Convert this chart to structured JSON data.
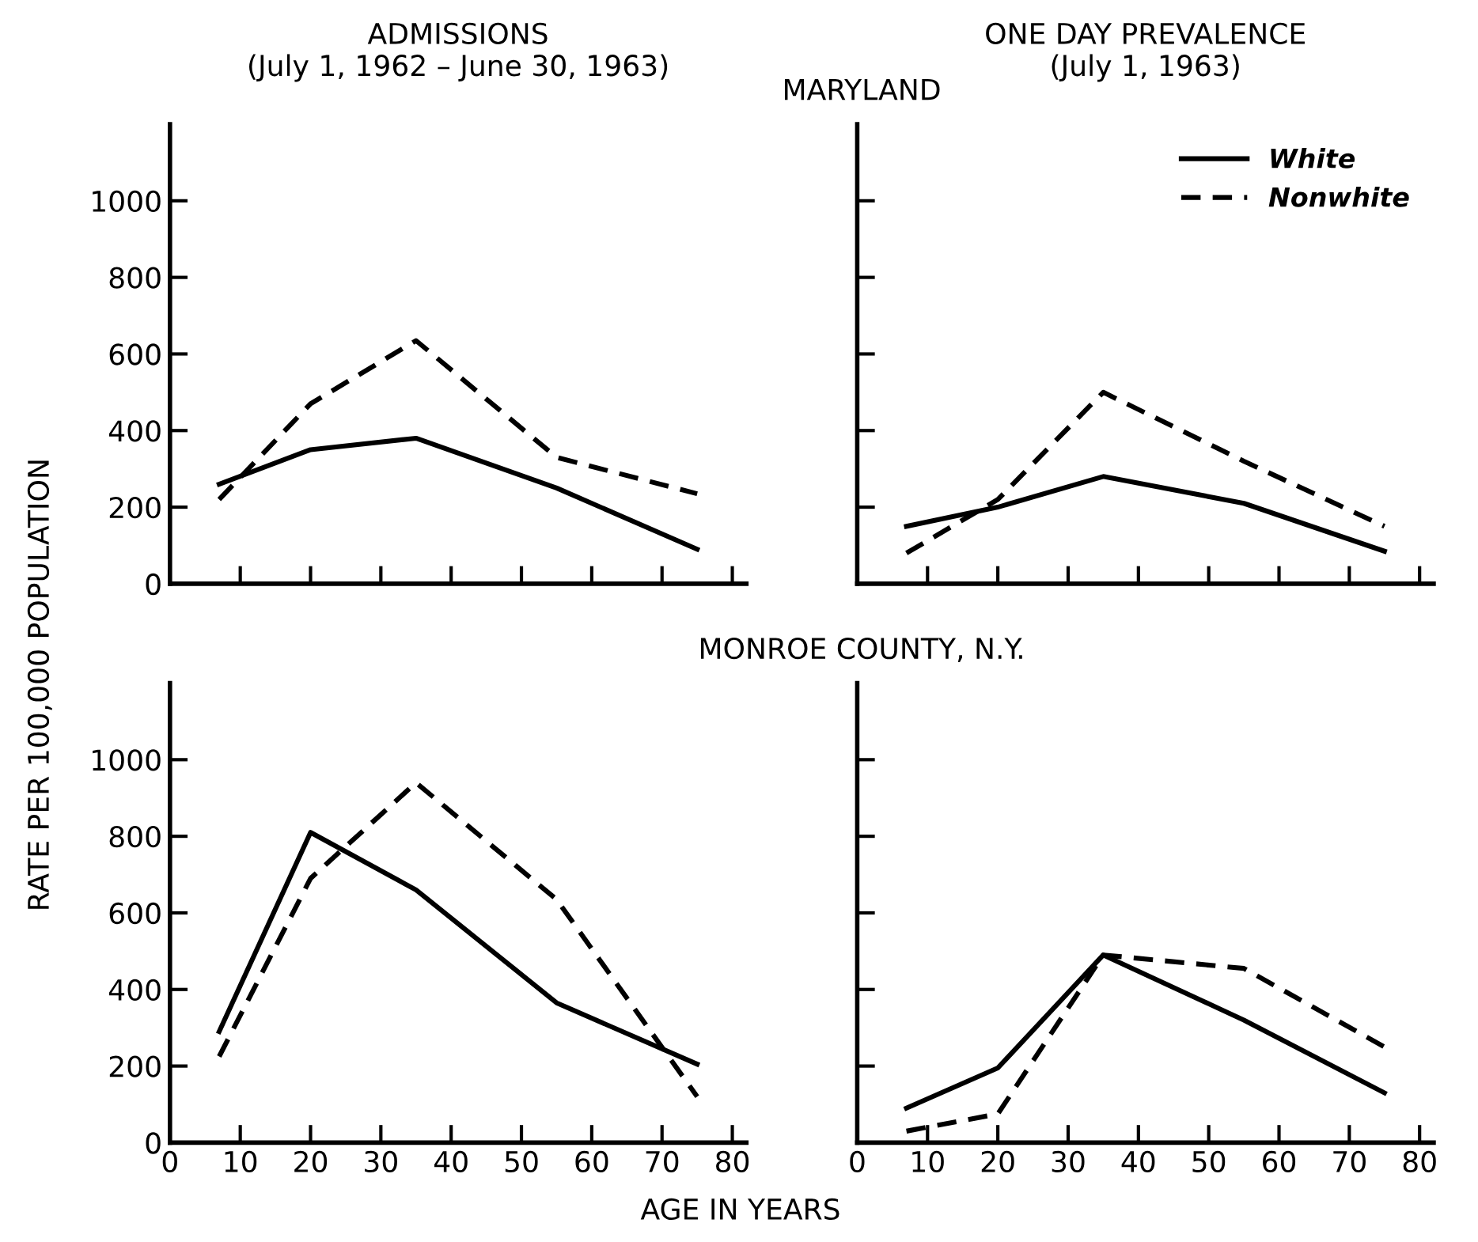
{
  "chart_data": [
    {
      "type": "line",
      "title": "ADMISSIONS\n(July 1, 1962 – June 30, 1963)",
      "ylabel": "RATE PER 100,000 POPULATION",
      "annotations": [
        "MARYLAND"
      ],
      "x": [
        7,
        20,
        35,
        55,
        75
      ],
      "xlim": [
        0,
        82
      ],
      "ylim": [
        0,
        1200
      ],
      "xticks": [
        10,
        20,
        30,
        40,
        50,
        60,
        70,
        80
      ],
      "yticks": [
        0,
        200,
        400,
        600,
        800,
        1000
      ],
      "tick_labels": "y",
      "legend": false,
      "grid": false,
      "series": [
        {
          "color": "#000000",
          "line_style": "solid",
          "values": [
            260,
            350,
            380,
            250,
            90
          ]
        },
        {
          "color": "#000000",
          "line_style": "dashed",
          "values": [
            220,
            470,
            635,
            330,
            235
          ]
        }
      ]
    },
    {
      "type": "line",
      "title": "ONE DAY PREVALENCE\n(July 1, 1963)",
      "x": [
        7,
        20,
        35,
        55,
        75
      ],
      "xlim": [
        0,
        82
      ],
      "ylim": [
        0,
        1200
      ],
      "xticks": [
        10,
        20,
        30,
        40,
        50,
        60,
        70,
        80
      ],
      "yticks": [
        200,
        400,
        600,
        800,
        1000
      ],
      "tick_labels": false,
      "legend": "top right",
      "grid": false,
      "series": [
        {
          "name": "White",
          "color": "#000000",
          "line_style": "solid",
          "values": [
            150,
            200,
            280,
            210,
            85
          ]
        },
        {
          "name": "Nonwhite",
          "color": "#000000",
          "line_style": "dashed",
          "values": [
            80,
            220,
            500,
            320,
            150
          ]
        }
      ]
    },
    {
      "type": "line",
      "xlabel": "AGE IN YEARS",
      "annotations": [
        "MONROE COUNTY, N.Y."
      ],
      "x": [
        7,
        20,
        35,
        55,
        75
      ],
      "xlim": [
        0,
        82
      ],
      "ylim": [
        0,
        1200
      ],
      "xticks": [
        0,
        10,
        20,
        30,
        40,
        50,
        60,
        70,
        80
      ],
      "yticks": [
        0,
        200,
        400,
        600,
        800,
        1000
      ],
      "legend": false,
      "grid": false,
      "series": [
        {
          "color": "#000000",
          "line_style": "solid",
          "values": [
            290,
            810,
            660,
            365,
            205
          ]
        },
        {
          "color": "#000000",
          "line_style": "dashed",
          "values": [
            225,
            690,
            940,
            635,
            120
          ]
        }
      ]
    },
    {
      "type": "line",
      "x": [
        7,
        20,
        35,
        55,
        75
      ],
      "xlim": [
        0,
        82
      ],
      "ylim": [
        0,
        1200
      ],
      "xticks": [
        0,
        10,
        20,
        30,
        40,
        50,
        60,
        70,
        80
      ],
      "yticks": [
        200,
        400,
        600,
        800,
        1000
      ],
      "tick_labels": "x",
      "legend": false,
      "grid": false,
      "series": [
        {
          "color": "#000000",
          "line_style": "solid",
          "values": [
            90,
            195,
            490,
            320,
            130
          ]
        },
        {
          "color": "#000000",
          "line_style": "dashed",
          "values": [
            30,
            75,
            490,
            455,
            250
          ]
        }
      ]
    }
  ]
}
